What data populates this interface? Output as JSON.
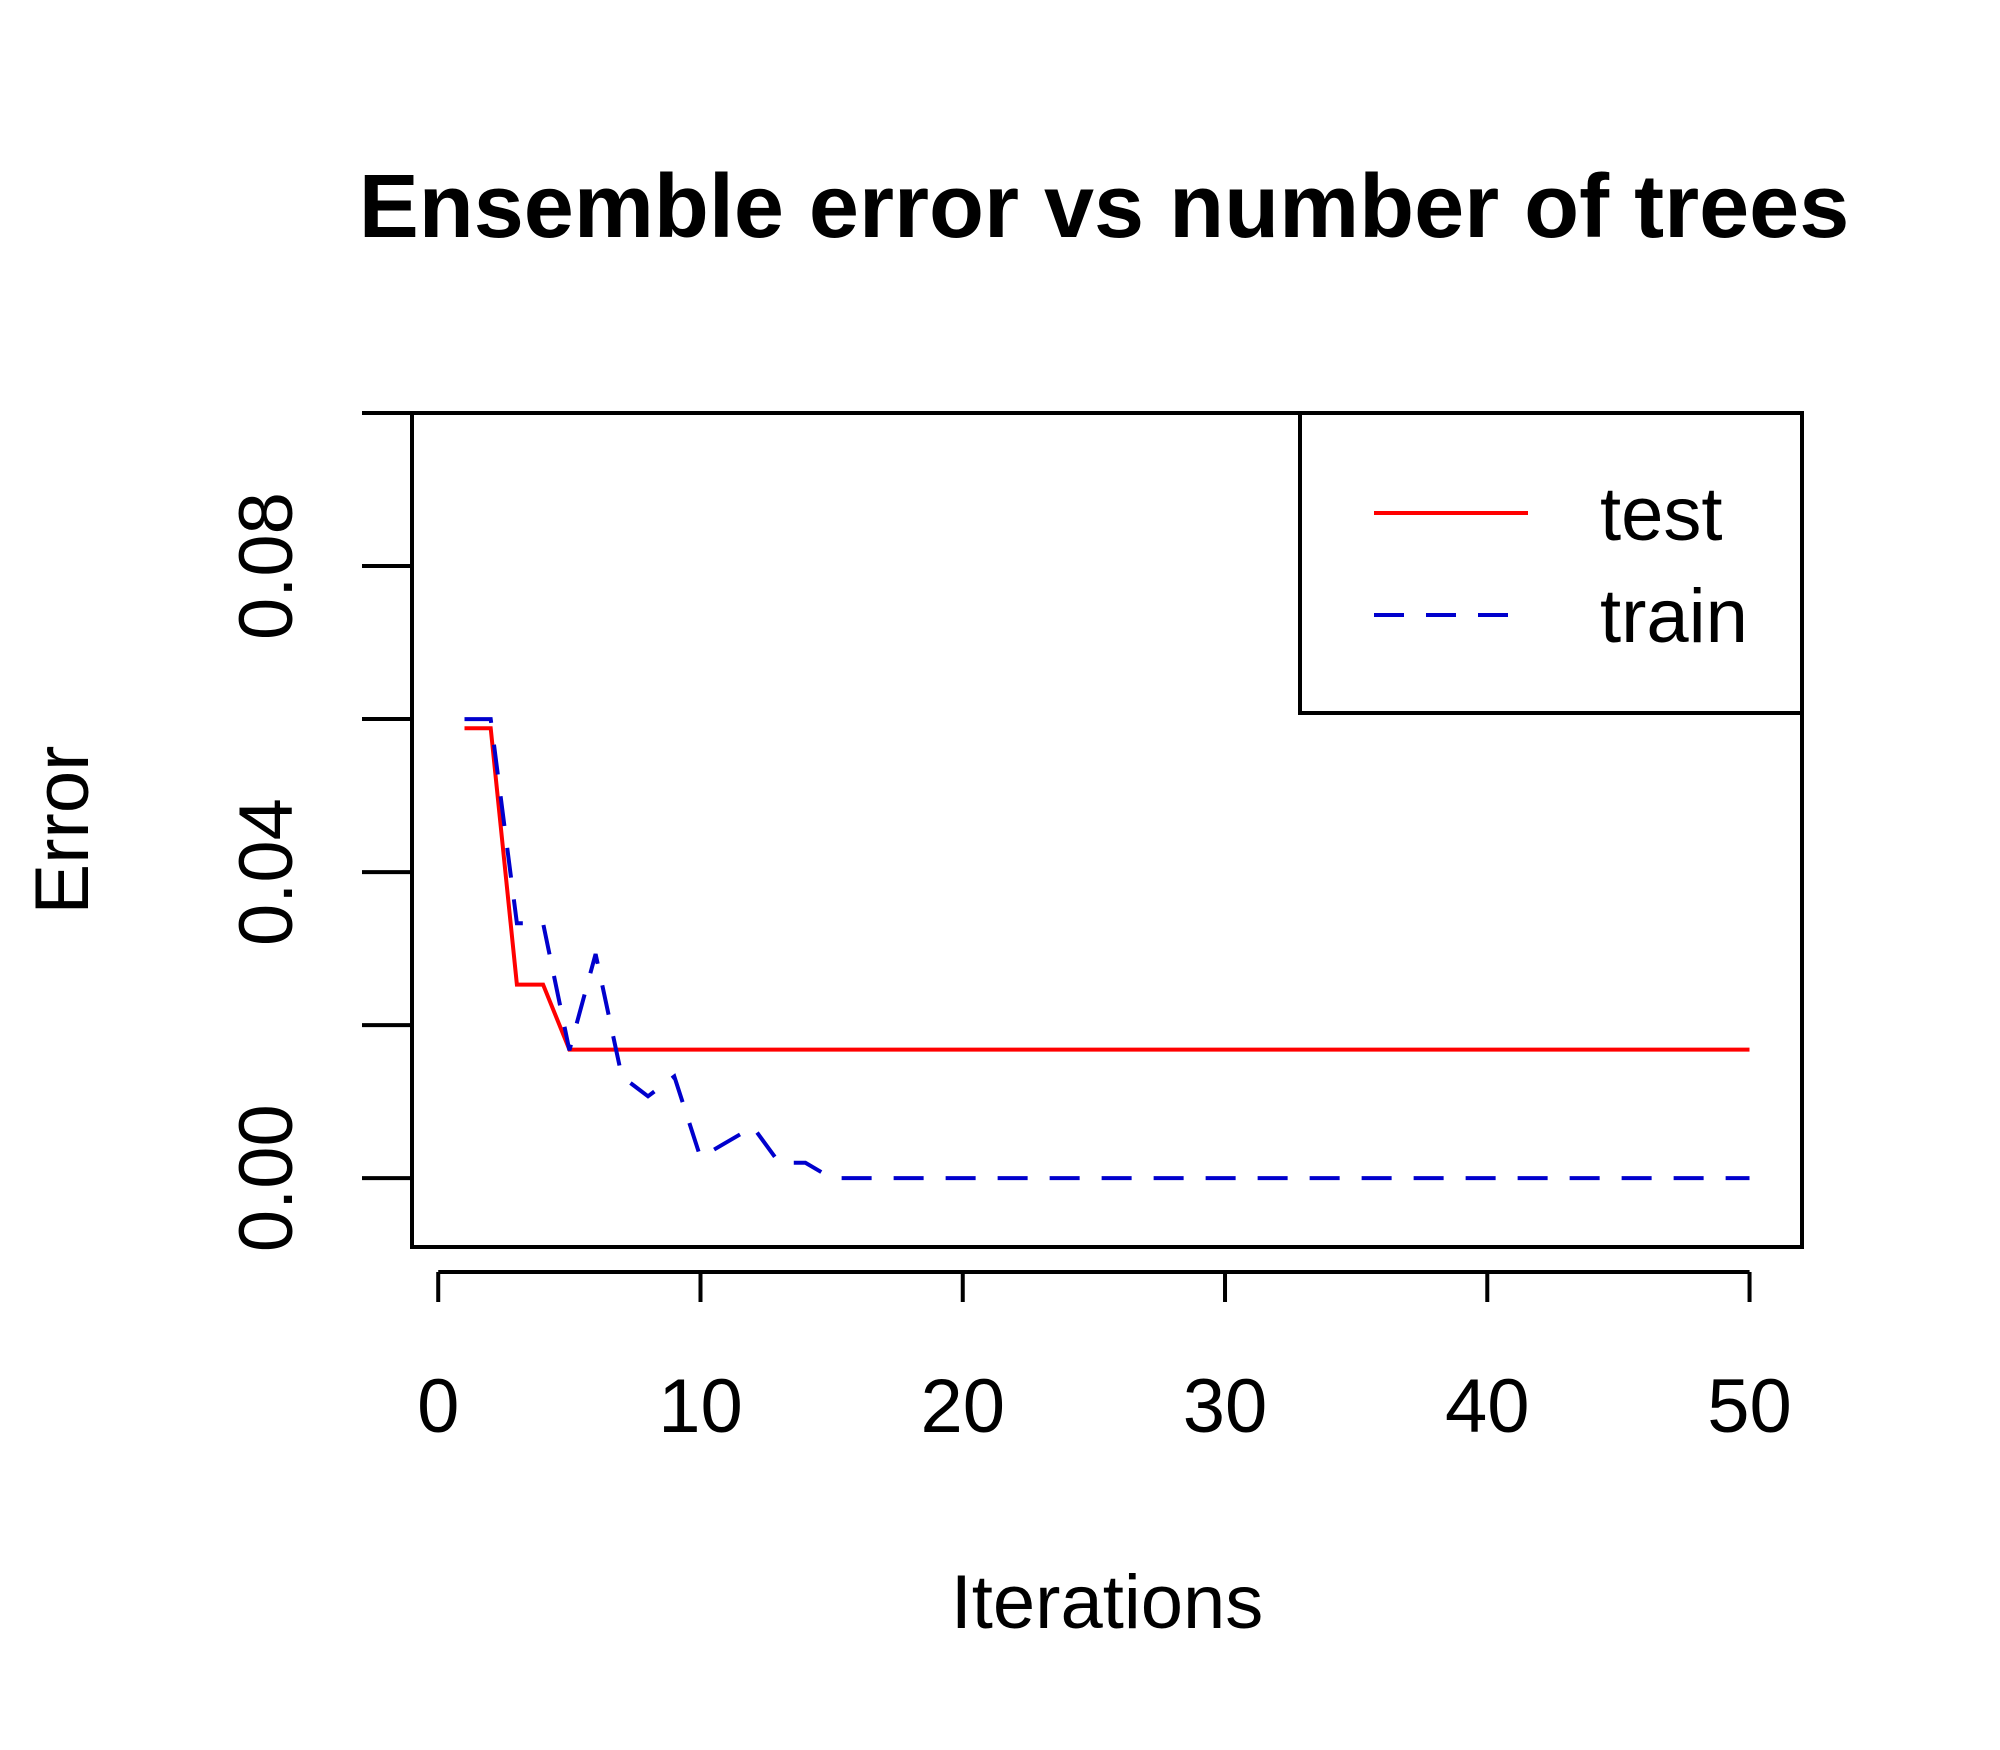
{
  "chart_data": {
    "type": "line",
    "title": "Ensemble error vs number of trees",
    "xlabel": "Iterations",
    "ylabel": "Error",
    "xlim": [
      -1,
      52
    ],
    "ylim": [
      -0.009,
      0.1
    ],
    "xticks": [
      0,
      10,
      20,
      30,
      40,
      50
    ],
    "yticks": [
      0.0,
      0.02,
      0.04,
      0.06,
      0.08,
      0.1
    ],
    "ytick_labels": [
      "0.00",
      "",
      "0.04",
      "",
      "0.08",
      ""
    ],
    "legend_position": "top-right",
    "grid": false,
    "series": [
      {
        "name": "test",
        "color": "#ff0000",
        "dash": "solid",
        "x": [
          1,
          2,
          3,
          4,
          5,
          6,
          7,
          8,
          9,
          10,
          11,
          12,
          13,
          14,
          15,
          16,
          17,
          18,
          19,
          20,
          21,
          22,
          23,
          24,
          25,
          26,
          27,
          28,
          29,
          30,
          31,
          32,
          33,
          34,
          35,
          36,
          37,
          38,
          39,
          40,
          41,
          42,
          43,
          44,
          45,
          46,
          47,
          48,
          49,
          50
        ],
        "y": [
          0.0588,
          0.0588,
          0.0253,
          0.0253,
          0.0168,
          0.0168,
          0.0168,
          0.0168,
          0.0168,
          0.0168,
          0.0168,
          0.0168,
          0.0168,
          0.0168,
          0.0168,
          0.0168,
          0.0168,
          0.0168,
          0.0168,
          0.0168,
          0.0168,
          0.0168,
          0.0168,
          0.0168,
          0.0168,
          0.0168,
          0.0168,
          0.0168,
          0.0168,
          0.0168,
          0.0168,
          0.0168,
          0.0168,
          0.0168,
          0.0168,
          0.0168,
          0.0168,
          0.0168,
          0.0168,
          0.0168,
          0.0168,
          0.0168,
          0.0168,
          0.0168,
          0.0168,
          0.0168,
          0.0168,
          0.0168,
          0.0168,
          0.0168
        ]
      },
      {
        "name": "train",
        "color": "#0000cd",
        "dash": "dashed",
        "x": [
          1,
          2,
          3,
          4,
          5,
          6,
          7,
          8,
          9,
          10,
          11,
          12,
          13,
          14,
          15,
          16,
          17,
          18,
          19,
          20,
          21,
          22,
          23,
          24,
          25,
          26,
          27,
          28,
          29,
          30,
          31,
          32,
          33,
          34,
          35,
          36,
          37,
          38,
          39,
          40,
          41,
          42,
          43,
          44,
          45,
          46,
          47,
          48,
          49,
          50
        ],
        "y": [
          0.06,
          0.06,
          0.0333,
          0.0333,
          0.0167,
          0.0293,
          0.0133,
          0.0107,
          0.0133,
          0.0027,
          0.0047,
          0.0067,
          0.002,
          0.002,
          0.0,
          0.0,
          0.0,
          0.0,
          0.0,
          0.0,
          0.0,
          0.0,
          0.0,
          0.0,
          0.0,
          0.0,
          0.0,
          0.0,
          0.0,
          0.0,
          0.0,
          0.0,
          0.0,
          0.0,
          0.0,
          0.0,
          0.0,
          0.0,
          0.0,
          0.0,
          0.0,
          0.0,
          0.0,
          0.0,
          0.0,
          0.0,
          0.0,
          0.0,
          0.0,
          0.0
        ]
      }
    ]
  }
}
